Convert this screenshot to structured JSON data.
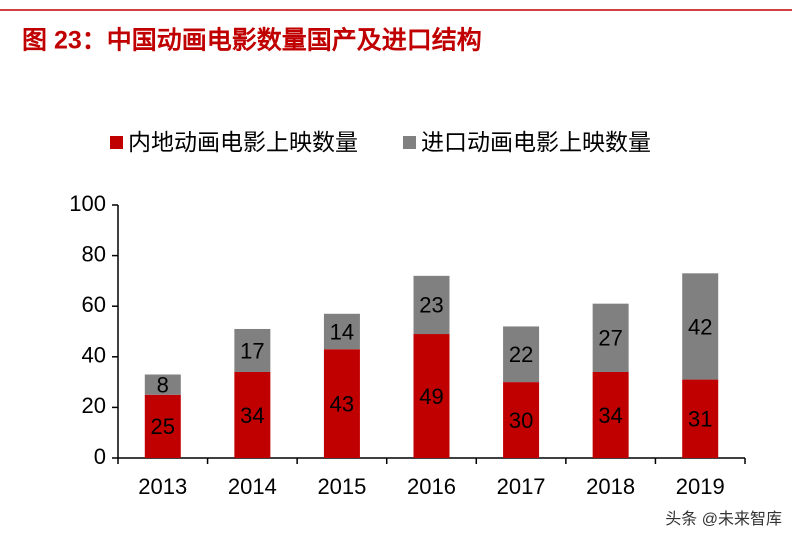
{
  "chart_data": {
    "type": "stacked_bar",
    "title": "图 23：中国动画电影数量国产及进口结构",
    "categories": [
      "2013",
      "2014",
      "2015",
      "2016",
      "2017",
      "2018",
      "2019"
    ],
    "series": [
      {
        "name": "内地动画电影上映数量",
        "color": "#c00000",
        "values": [
          25,
          34,
          43,
          49,
          30,
          34,
          31
        ]
      },
      {
        "name": "进口动画电影上映数量",
        "color": "#808080",
        "values": [
          8,
          17,
          14,
          23,
          22,
          27,
          42
        ]
      }
    ],
    "ylim": [
      0,
      100
    ],
    "yticks": [
      0,
      20,
      40,
      60,
      80,
      100
    ],
    "watermark": "头条 @未来智库"
  }
}
